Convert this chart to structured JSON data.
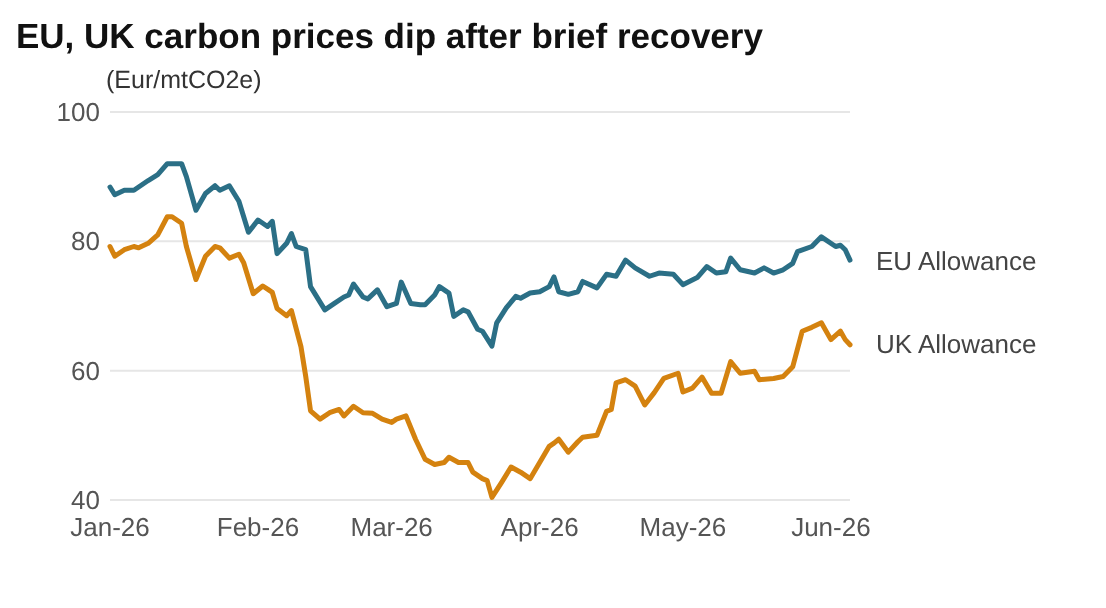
{
  "chart_data": {
    "type": "line",
    "title": "EU, UK carbon prices dip after brief recovery",
    "ylabel": "(Eur/mtCO2e)",
    "xlim": [
      "2026-01-01",
      "2026-06-05"
    ],
    "xticks": [
      {
        "value": "2026-01-01",
        "label": "Jan-26"
      },
      {
        "value": "2026-02-01",
        "label": "Feb-26"
      },
      {
        "value": "2026-03-01",
        "label": "Mar-26"
      },
      {
        "value": "2026-04-01",
        "label": "Apr-26"
      },
      {
        "value": "2026-05-01",
        "label": "May-26"
      },
      {
        "value": "2026-06-01",
        "label": "Jun-26"
      }
    ],
    "ylim": [
      40,
      100
    ],
    "yticks": [
      40,
      60,
      80,
      100
    ],
    "grid": "y",
    "series": [
      {
        "name": "EU Allowance",
        "color": "#2b6f86",
        "x": [
          "2026-01-01",
          "2026-01-02",
          "2026-01-04",
          "2026-01-06",
          "2026-01-07",
          "2026-01-09",
          "2026-01-11",
          "2026-01-13",
          "2026-01-16",
          "2026-01-17",
          "2026-01-19",
          "2026-01-21",
          "2026-01-23",
          "2026-01-24",
          "2026-01-26",
          "2026-01-28",
          "2026-01-30",
          "2026-02-01",
          "2026-02-03",
          "2026-02-04",
          "2026-02-05",
          "2026-02-07",
          "2026-02-08",
          "2026-02-09",
          "2026-02-11",
          "2026-02-12",
          "2026-02-15",
          "2026-02-17",
          "2026-02-19",
          "2026-02-20",
          "2026-02-21",
          "2026-02-23",
          "2026-02-24",
          "2026-02-26",
          "2026-02-28",
          "2026-03-02",
          "2026-03-03",
          "2026-03-05",
          "2026-03-07",
          "2026-03-08",
          "2026-03-10",
          "2026-03-11",
          "2026-03-13",
          "2026-03-14",
          "2026-03-16",
          "2026-03-17",
          "2026-03-19",
          "2026-03-20",
          "2026-03-22",
          "2026-03-23",
          "2026-03-25",
          "2026-03-27",
          "2026-03-28",
          "2026-03-30",
          "2026-04-01",
          "2026-04-03",
          "2026-04-04",
          "2026-04-05",
          "2026-04-07",
          "2026-04-09",
          "2026-04-10",
          "2026-04-13",
          "2026-04-15",
          "2026-04-17",
          "2026-04-19",
          "2026-04-21",
          "2026-04-24",
          "2026-04-26",
          "2026-04-29",
          "2026-05-01",
          "2026-05-04",
          "2026-05-06",
          "2026-05-08",
          "2026-05-10",
          "2026-05-11",
          "2026-05-13",
          "2026-05-16",
          "2026-05-18",
          "2026-05-20",
          "2026-05-22",
          "2026-05-24",
          "2026-05-25",
          "2026-05-28",
          "2026-05-30",
          "2026-06-02",
          "2026-06-03",
          "2026-06-04",
          "2026-06-05"
        ],
        "values": [
          88.4,
          87.2,
          87.9,
          87.9,
          88.4,
          89.4,
          90.3,
          92.0,
          92.0,
          90.0,
          84.8,
          87.4,
          88.6,
          87.9,
          88.6,
          86.2,
          81.4,
          83.3,
          82.3,
          83.1,
          78.1,
          79.7,
          81.2,
          79.2,
          78.7,
          73.0,
          69.4,
          70.4,
          71.4,
          71.7,
          73.4,
          71.4,
          71.1,
          72.5,
          69.9,
          70.4,
          73.7,
          70.4,
          70.2,
          70.2,
          71.7,
          73.0,
          72.0,
          68.4,
          69.4,
          69.1,
          66.4,
          66.1,
          63.8,
          67.4,
          69.7,
          71.5,
          71.2,
          72.0,
          72.2,
          73.0,
          74.5,
          72.2,
          71.8,
          72.2,
          73.8,
          72.8,
          74.9,
          74.6,
          77.1,
          75.9,
          74.6,
          75.1,
          74.9,
          73.3,
          74.4,
          76.1,
          75.1,
          75.3,
          77.4,
          75.6,
          75.1,
          75.9,
          75.1,
          75.6,
          76.6,
          78.4,
          79.2,
          80.7,
          79.2,
          79.4,
          78.7,
          77.1
        ]
      },
      {
        "name": "UK Allowance",
        "color": "#d4820f",
        "x": [
          "2026-01-01",
          "2026-01-02",
          "2026-01-04",
          "2026-01-06",
          "2026-01-07",
          "2026-01-09",
          "2026-01-11",
          "2026-01-13",
          "2026-01-14",
          "2026-01-16",
          "2026-01-17",
          "2026-01-19",
          "2026-01-21",
          "2026-01-23",
          "2026-01-24",
          "2026-01-26",
          "2026-01-28",
          "2026-01-29",
          "2026-01-31",
          "2026-02-02",
          "2026-02-03",
          "2026-02-04",
          "2026-02-05",
          "2026-02-07",
          "2026-02-08",
          "2026-02-10",
          "2026-02-11",
          "2026-02-12",
          "2026-02-14",
          "2026-02-16",
          "2026-02-18",
          "2026-02-19",
          "2026-02-21",
          "2026-02-23",
          "2026-02-25",
          "2026-02-27",
          "2026-03-01",
          "2026-03-02",
          "2026-03-04",
          "2026-03-06",
          "2026-03-08",
          "2026-03-10",
          "2026-03-12",
          "2026-03-13",
          "2026-03-15",
          "2026-03-17",
          "2026-03-18",
          "2026-03-20",
          "2026-03-21",
          "2026-03-22",
          "2026-03-24",
          "2026-03-26",
          "2026-03-28",
          "2026-03-30",
          "2026-04-01",
          "2026-04-03",
          "2026-04-04",
          "2026-04-05",
          "2026-04-07",
          "2026-04-09",
          "2026-04-10",
          "2026-04-13",
          "2026-04-15",
          "2026-04-16",
          "2026-04-17",
          "2026-04-19",
          "2026-04-21",
          "2026-04-23",
          "2026-04-25",
          "2026-04-27",
          "2026-04-30",
          "2026-05-01",
          "2026-05-03",
          "2026-05-05",
          "2026-05-07",
          "2026-05-09",
          "2026-05-11",
          "2026-05-13",
          "2026-05-16",
          "2026-05-17",
          "2026-05-20",
          "2026-05-22",
          "2026-05-24",
          "2026-05-26",
          "2026-05-28",
          "2026-05-30",
          "2026-06-01",
          "2026-06-03",
          "2026-06-04",
          "2026-06-05"
        ],
        "values": [
          79.2,
          77.7,
          78.7,
          79.2,
          79.0,
          79.7,
          81.0,
          83.8,
          83.8,
          82.8,
          79.2,
          74.1,
          77.7,
          79.2,
          79.0,
          77.4,
          78.0,
          76.7,
          71.9,
          73.1,
          72.6,
          72.1,
          69.6,
          68.5,
          69.3,
          63.7,
          59.1,
          53.8,
          52.5,
          53.5,
          54.0,
          53.0,
          54.5,
          53.5,
          53.4,
          52.5,
          52.0,
          52.5,
          53.0,
          49.4,
          46.3,
          45.5,
          45.8,
          46.6,
          45.8,
          45.8,
          44.3,
          43.3,
          43.0,
          40.4,
          42.7,
          45.1,
          44.3,
          43.3,
          45.8,
          48.3,
          48.8,
          49.4,
          47.4,
          49.0,
          49.7,
          50.0,
          53.7,
          54.0,
          58.1,
          58.6,
          57.6,
          54.7,
          56.6,
          58.8,
          59.6,
          56.7,
          57.3,
          59.0,
          56.5,
          56.5,
          61.4,
          59.6,
          59.9,
          58.6,
          58.8,
          59.1,
          60.6,
          66.1,
          66.7,
          67.4,
          64.8,
          66.1,
          64.8,
          64.0
        ]
      }
    ]
  }
}
